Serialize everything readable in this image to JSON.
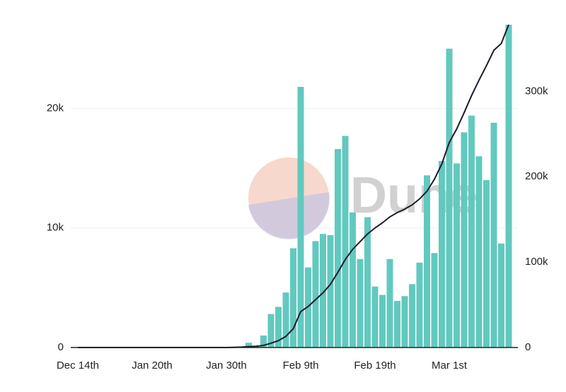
{
  "chart_data": {
    "type": "bar",
    "watermark": "Dune",
    "categories": [
      "Dec 14th",
      null,
      null,
      null,
      null,
      null,
      null,
      null,
      null,
      null,
      "Jan 20th",
      null,
      null,
      null,
      null,
      null,
      null,
      null,
      null,
      null,
      "Jan 30th",
      null,
      null,
      null,
      null,
      null,
      null,
      null,
      null,
      null,
      "Feb 9th",
      null,
      null,
      null,
      null,
      null,
      null,
      null,
      null,
      null,
      "Feb 19th",
      null,
      null,
      null,
      null,
      null,
      null,
      null,
      null,
      null,
      "Mar 1st",
      null,
      null,
      null,
      null,
      null,
      null,
      null,
      null
    ],
    "series": [
      {
        "type": "bar",
        "color": "#62c9bf",
        "values": [
          0,
          0,
          0,
          0,
          0,
          0,
          0,
          0,
          0,
          0,
          0,
          0,
          0,
          0,
          0,
          0,
          0,
          0,
          0,
          0,
          0,
          0,
          0,
          400,
          100,
          1000,
          2800,
          3400,
          4600,
          8300,
          21800,
          6700,
          8900,
          9500,
          9400,
          16600,
          17700,
          11300,
          7400,
          10900,
          5100,
          4400,
          7400,
          3900,
          4300,
          5300,
          7100,
          14400,
          7900,
          15600,
          25000,
          15400,
          18000,
          19400,
          16000,
          14000,
          18800,
          8700,
          27000
        ]
      },
      {
        "type": "line",
        "axis": "y2",
        "color": "#1b1b2b",
        "values": [
          0,
          0,
          0,
          0,
          0,
          0,
          0,
          0,
          0,
          0,
          0,
          0,
          0,
          0,
          0,
          0,
          0,
          0,
          0,
          0,
          0,
          200,
          500,
          1000,
          1500,
          2500,
          5000,
          8000,
          13000,
          22000,
          42000,
          48000,
          56000,
          64000,
          74000,
          88000,
          103000,
          115000,
          124000,
          133000,
          140000,
          146000,
          153000,
          158000,
          162000,
          167000,
          174000,
          183000,
          197000,
          215000,
          240000,
          256000,
          275000,
          295000,
          313000,
          330000,
          348000,
          356000,
          378000
        ]
      }
    ],
    "ylim": [
      0,
      27000
    ],
    "yticks": [
      {
        "value": 0,
        "label": "0"
      },
      {
        "value": 10000,
        "label": "10k"
      },
      {
        "value": 20000,
        "label": "20k"
      }
    ],
    "y2lim": [
      0,
      378000
    ],
    "y2ticks": [
      {
        "value": 0,
        "label": "0"
      },
      {
        "value": 100000,
        "label": "100k"
      },
      {
        "value": 200000,
        "label": "200k"
      },
      {
        "value": 300000,
        "label": "300k"
      }
    ],
    "grid": true
  }
}
